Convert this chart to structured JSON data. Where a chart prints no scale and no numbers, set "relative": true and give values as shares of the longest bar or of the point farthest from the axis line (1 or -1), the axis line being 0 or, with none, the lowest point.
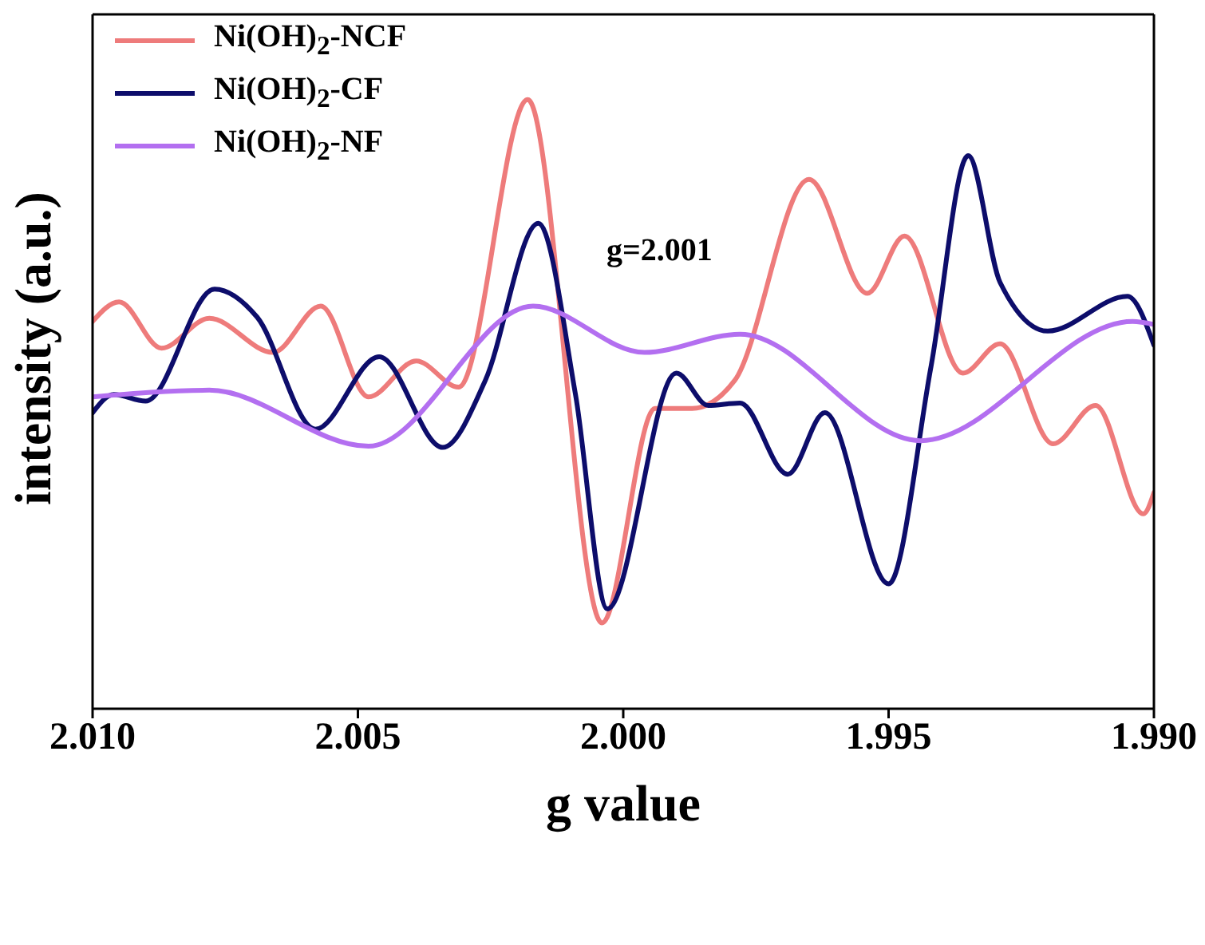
{
  "chart_data": {
    "type": "line",
    "relative": true,
    "xlabel": "g value",
    "ylabel": "intensity (a.u.)",
    "annotations": [
      "g=2.001"
    ],
    "xlim": [
      2.01,
      1.99
    ],
    "xticks": [
      {
        "value": 2.01,
        "label": "2.010"
      },
      {
        "value": 2.005,
        "label": "2.005"
      },
      {
        "value": 2.0,
        "label": "2.000"
      },
      {
        "value": 1.995,
        "label": "1.995"
      },
      {
        "value": 1.99,
        "label": "1.990"
      }
    ],
    "legend": "top left",
    "marker": "none",
    "line_style": "solid",
    "series": [
      {
        "name": "Ni(OH)$_{2}$-NCF",
        "color": "#ee7b7b",
        "x": [
          2.01,
          2.0095,
          2.0087,
          2.0078,
          2.0066,
          2.0057,
          2.0048,
          2.0039,
          2.0031,
          2.0018,
          2.0004,
          1.9994,
          1.9987,
          1.9979,
          1.9965,
          1.9954,
          1.9947,
          1.9936,
          1.9929,
          1.9919,
          1.9911,
          1.9902,
          1.99
        ],
        "values": [
          0.636,
          0.668,
          0.592,
          0.641,
          0.585,
          0.661,
          0.512,
          0.571,
          0.528,
          1.0,
          0.141,
          0.493,
          0.493,
          0.539,
          0.869,
          0.682,
          0.776,
          0.551,
          0.599,
          0.435,
          0.498,
          0.32,
          0.355
        ]
      },
      {
        "name": "Ni(OH)$_{2}$-CF",
        "color": "#0d0d6b",
        "x": [
          2.01,
          2.0096,
          2.009,
          2.0077,
          2.0069,
          2.0058,
          2.0046,
          2.0034,
          2.0026,
          2.0016,
          2.0009,
          2.0003,
          1.999,
          1.9984,
          1.9978,
          1.9969,
          1.9962,
          1.995,
          1.9942,
          1.9935,
          1.9929,
          1.992,
          1.9905,
          1.99
        ],
        "values": [
          0.486,
          0.516,
          0.505,
          0.689,
          0.643,
          0.459,
          0.578,
          0.429,
          0.539,
          0.797,
          0.516,
          0.164,
          0.551,
          0.498,
          0.502,
          0.385,
          0.486,
          0.205,
          0.562,
          0.908,
          0.7,
          0.62,
          0.677,
          0.597
        ]
      },
      {
        "name": "Ni(OH)$_{2}$-NF",
        "color": "#b36ff0",
        "x": [
          2.01,
          2.0078,
          2.0048,
          2.0017,
          1.9996,
          1.9978,
          1.9944,
          1.9904,
          1.99
        ],
        "values": [
          0.512,
          0.523,
          0.431,
          0.661,
          0.585,
          0.615,
          0.44,
          0.636,
          0.631
        ]
      }
    ]
  }
}
